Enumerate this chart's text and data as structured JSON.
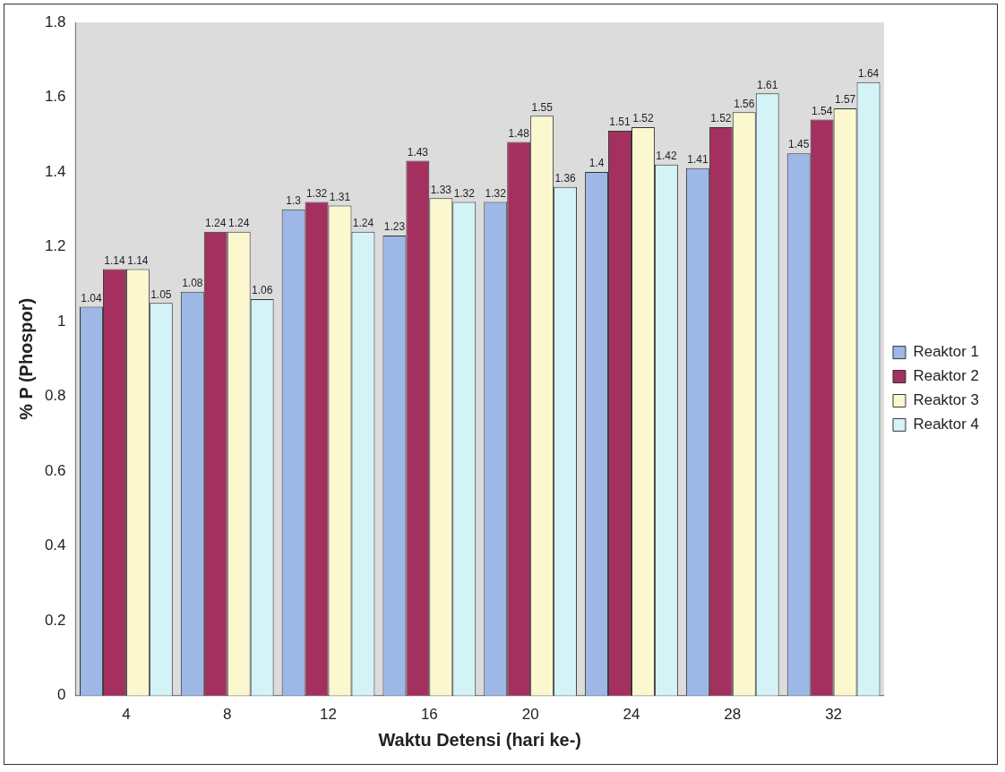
{
  "chart_data": {
    "type": "bar",
    "xlabel": "Waktu Detensi (hari ke-)",
    "ylabel": "% P (Phospor)",
    "categories": [
      "4",
      "8",
      "12",
      "16",
      "20",
      "24",
      "28",
      "32"
    ],
    "series": [
      {
        "name": "Reaktor 1",
        "color": "#9db8e6",
        "values": [
          1.04,
          1.08,
          1.3,
          1.23,
          1.32,
          1.4,
          1.41,
          1.45
        ]
      },
      {
        "name": "Reaktor 2",
        "color": "#a3305f",
        "values": [
          1.14,
          1.24,
          1.32,
          1.43,
          1.48,
          1.51,
          1.52,
          1.54
        ]
      },
      {
        "name": "Reaktor 3",
        "color": "#fbf8cf",
        "values": [
          1.14,
          1.24,
          1.31,
          1.33,
          1.55,
          1.52,
          1.56,
          1.57
        ]
      },
      {
        "name": "Reaktor 4",
        "color": "#d3f3f7",
        "values": [
          1.05,
          1.06,
          1.24,
          1.32,
          1.36,
          1.42,
          1.61,
          1.64
        ]
      }
    ],
    "ylim": [
      0,
      1.8
    ],
    "yticks": [
      0,
      0.2,
      0.4,
      0.6,
      0.8,
      1,
      1.2,
      1.4,
      1.6,
      1.8
    ],
    "grid": false,
    "legend": "right",
    "data_labels": true
  }
}
